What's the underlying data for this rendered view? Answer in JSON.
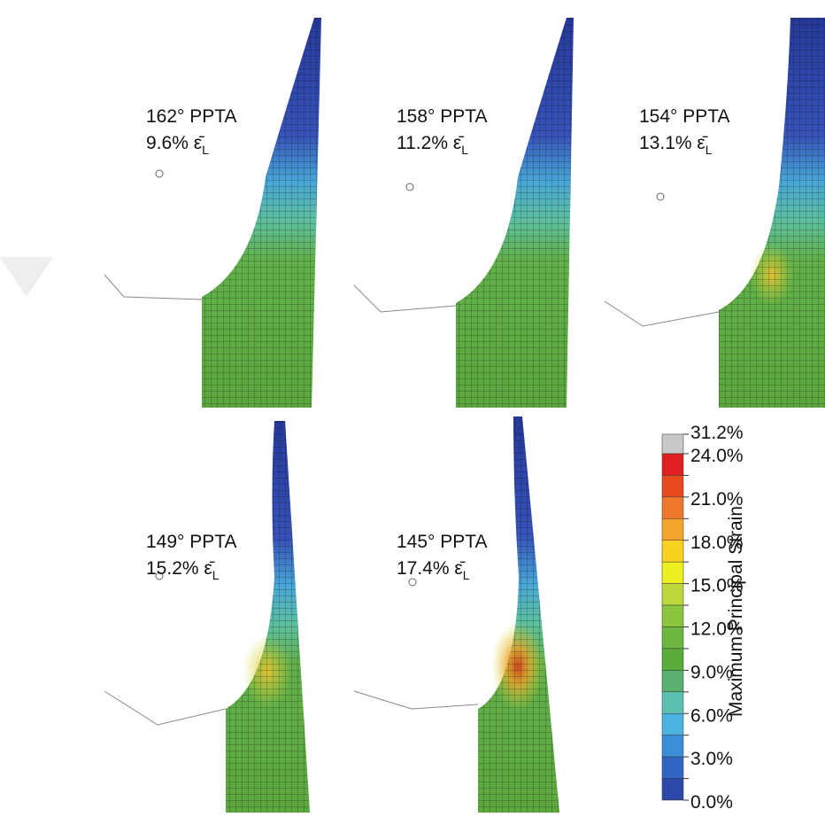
{
  "panels": [
    {
      "angle": "162° PPTA",
      "strain": "9.6% ε̄",
      "sub": "L"
    },
    {
      "angle": "158° PPTA",
      "strain": "11.2% ε̄",
      "sub": "L"
    },
    {
      "angle": "154° PPTA",
      "strain": "13.1% ε̄",
      "sub": "L"
    },
    {
      "angle": "149° PPTA",
      "strain": "15.2% ε̄",
      "sub": "L"
    },
    {
      "angle": "145° PPTA",
      "strain": "17.4% ε̄",
      "sub": "L"
    }
  ],
  "colorbar": {
    "title": "Maximum Principal Strain",
    "labels": [
      "31.2%",
      "24.0%",
      "21.0%",
      "18.0%",
      "15.0%",
      "12.0%",
      "9.0%",
      "6.0%",
      "3.0%",
      "0.0%"
    ],
    "colors": [
      "#c8c8c8",
      "#e02020",
      "#e84a1e",
      "#f0782a",
      "#f4a42a",
      "#f8d21e",
      "#eef020",
      "#bcd83a",
      "#8cc43c",
      "#6cb840",
      "#5aac3c",
      "#58b070",
      "#5cc0b0",
      "#4cb4e0",
      "#3a8ed8",
      "#3266c4",
      "#2c48a8"
    ]
  }
}
